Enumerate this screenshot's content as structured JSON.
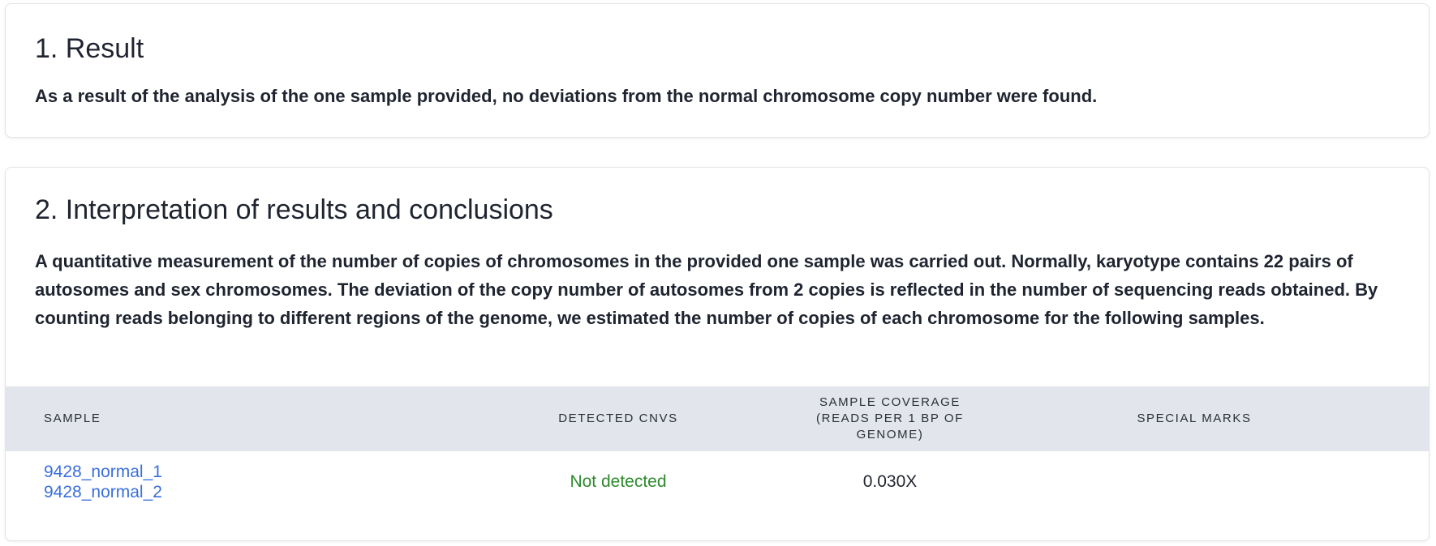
{
  "result": {
    "title": "1. Result",
    "text": "As a result of the analysis of the one sample provided, no deviations from the normal chromosome copy number were found."
  },
  "interpretation": {
    "title": "2. Interpretation of results and conclusions",
    "text": "A quantitative measurement of the number of copies of chromosomes in the provided one sample was carried out. Normally, karyotype contains 22 pairs of autosomes and sex chromosomes. The deviation of the copy number of autosomes from 2 copies is reflected in the number of sequencing reads obtained. By counting reads belonging to different regions of the genome, we estimated the number of copies of each chromosome for the following samples."
  },
  "table": {
    "headers": {
      "sample": "SAMPLE",
      "cnvs": "DETECTED CNVS",
      "coverage": "SAMPLE COVERAGE (READS PER 1 BP OF GENOME)",
      "marks": "SPECIAL MARKS"
    },
    "rows": [
      {
        "samples": [
          "9428_normal_1",
          "9428_normal_2"
        ],
        "cnvs": "Not detected",
        "coverage": "0.030X",
        "marks": ""
      }
    ]
  },
  "colors": {
    "link": "#3a6fdc",
    "not_detected": "#2e8a2e",
    "table_header_bg": "#e2e5ec"
  }
}
